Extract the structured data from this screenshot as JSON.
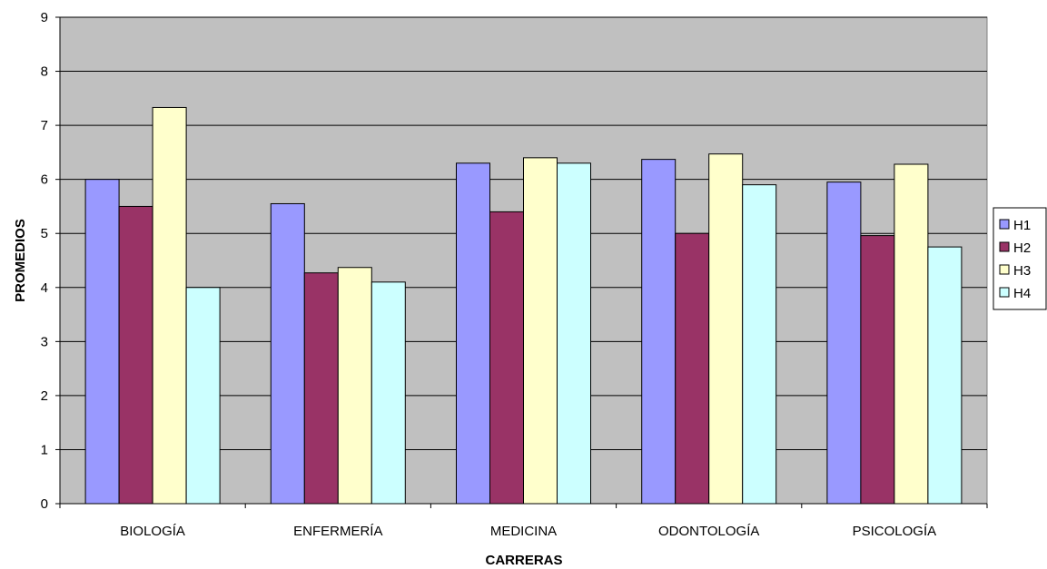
{
  "chart_data": {
    "type": "bar",
    "title": "",
    "xlabel": "CARRERAS",
    "ylabel": "PROMEDIOS",
    "ylim": [
      0,
      9
    ],
    "yticks": [
      0,
      1,
      2,
      3,
      4,
      5,
      6,
      7,
      8,
      9
    ],
    "grid": true,
    "legend_position": "right",
    "categories": [
      "BIOLOGÍA",
      "ENFERMERÍA",
      "MEDICINA",
      "ODONTOLOGÍA",
      "PSICOLOGÍA"
    ],
    "series": [
      {
        "name": "H1",
        "color": "#9999ff",
        "values": [
          6.0,
          5.55,
          6.3,
          6.37,
          5.95
        ]
      },
      {
        "name": "H2",
        "color": "#993366",
        "values": [
          5.5,
          4.27,
          5.4,
          5.0,
          4.96
        ]
      },
      {
        "name": "H3",
        "color": "#ffffcc",
        "values": [
          7.33,
          4.37,
          6.4,
          6.47,
          6.28
        ]
      },
      {
        "name": "H4",
        "color": "#ccffff",
        "values": [
          4.0,
          4.1,
          6.3,
          5.9,
          4.75
        ]
      }
    ],
    "plot_background": "#c0c0c0"
  }
}
